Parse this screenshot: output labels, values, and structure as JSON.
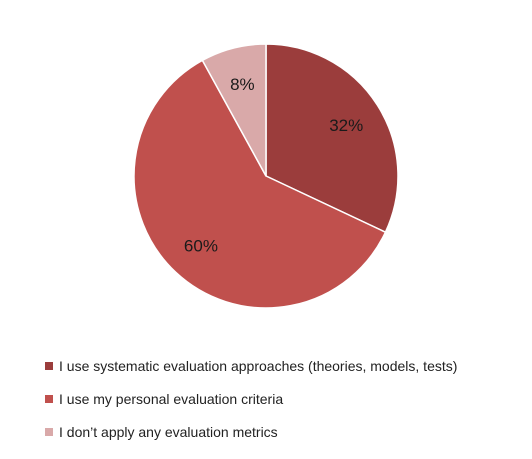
{
  "chart_data": {
    "type": "pie",
    "categories": [
      "I use systematic evaluation approaches (theories, models, tests)",
      "I use my personal evaluation criteria",
      "I don’t apply any evaluation metrics"
    ],
    "values": [
      32,
      60,
      8
    ],
    "data_labels": [
      "32%",
      "60%",
      "8%"
    ],
    "colors": [
      "#9b3d3c",
      "#c0504d",
      "#d9a9a9"
    ],
    "legend_position": "bottom",
    "title": ""
  }
}
